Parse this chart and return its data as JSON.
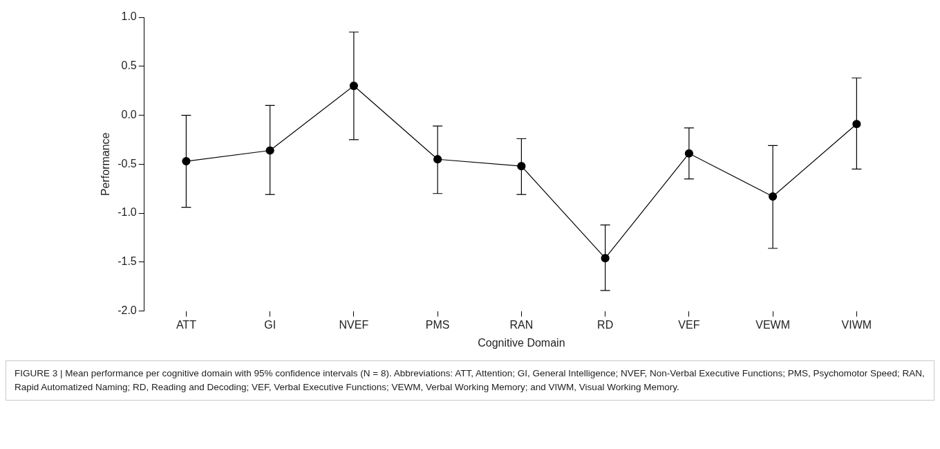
{
  "chart_data": {
    "type": "line",
    "xlabel": "Cognitive Domain",
    "ylabel": "Performance",
    "categories": [
      "ATT",
      "GI",
      "NVEF",
      "PMS",
      "RAN",
      "RD",
      "VEF",
      "VEWM",
      "VIWM"
    ],
    "series": [
      {
        "color": "#000000",
        "values": [
          -0.47,
          -0.36,
          0.3,
          -0.45,
          -0.52,
          -1.46,
          -0.39,
          -0.83,
          -0.09
        ],
        "errors": [
          [
            -0.94,
            0.0
          ],
          [
            -0.81,
            0.1
          ],
          [
            -0.25,
            0.85
          ],
          [
            -0.8,
            -0.11
          ],
          [
            -0.81,
            -0.24
          ],
          [
            -1.79,
            -1.12
          ],
          [
            -0.65,
            -0.13
          ],
          [
            -1.36,
            -0.31
          ],
          [
            -0.55,
            0.38
          ]
        ]
      }
    ],
    "ylim": [
      -2.0,
      1.0
    ],
    "yticks": [
      {
        "value": -2,
        "label": "-2.0"
      },
      {
        "value": -1.5,
        "label": "-1.5"
      },
      {
        "value": -1,
        "label": "-1.0"
      },
      {
        "value": -0.5,
        "label": "-0.5"
      },
      {
        "value": 0,
        "label": "0.0"
      },
      {
        "value": 0.5,
        "label": "0.5"
      },
      {
        "value": 1,
        "label": "1.0"
      }
    ],
    "grid": false,
    "legend": false,
    "marker": "circle",
    "line_style": "solid",
    "annotations": [
      "FIGURE 3 | Mean performance per cognitive domain with 95% confidence intervals (N = 8). Abbreviations: ATT, Attention; GI, General Intelligence; NVEF, Non-Verbal Executive Functions; PMS, Psychomotor Speed; RAN, Rapid Automatized Naming; RD, Reading and Decoding; VEF, Verbal Executive Functions; VEWM, Verbal Working Memory; and VIWM, Visual Working Memory."
    ]
  }
}
